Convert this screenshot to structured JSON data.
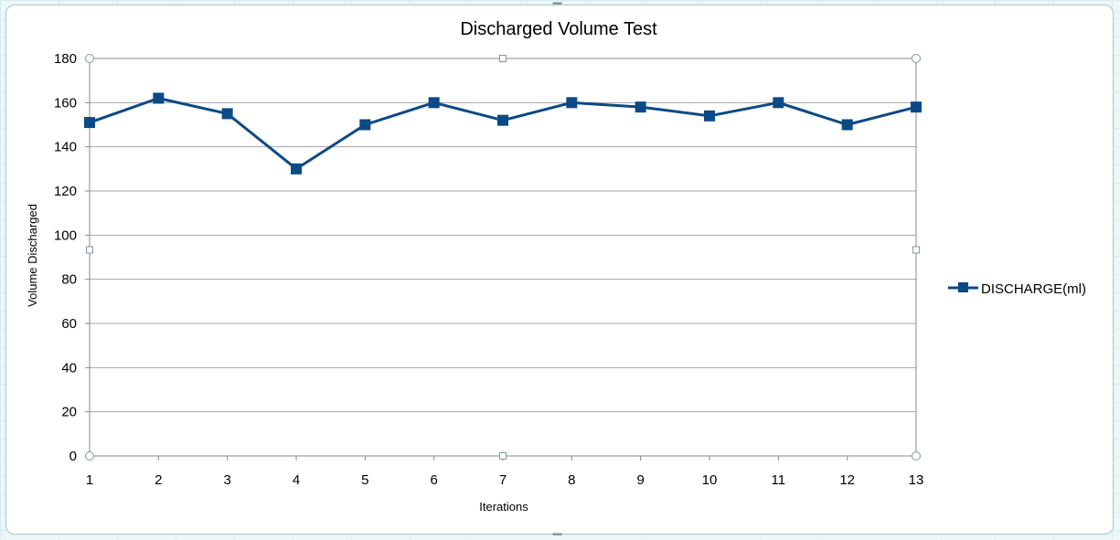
{
  "chart_data": {
    "type": "line",
    "title": "Discharged Volume Test",
    "xlabel": "Iterations",
    "ylabel": "Volume Discharged",
    "categories": [
      "1",
      "2",
      "3",
      "4",
      "5",
      "6",
      "7",
      "8",
      "9",
      "10",
      "11",
      "12",
      "13"
    ],
    "series": [
      {
        "name": "DISCHARGE(ml)",
        "values": [
          151,
          162,
          155,
          130,
          150,
          160,
          152,
          160,
          158,
          154,
          160,
          150,
          158
        ],
        "color": "#0b4a86"
      }
    ],
    "ylim": [
      0,
      180
    ],
    "yticks": [
      0,
      20,
      40,
      60,
      80,
      100,
      120,
      140,
      160,
      180
    ],
    "grid": "horizontal",
    "legend": "right",
    "marker": "square"
  }
}
